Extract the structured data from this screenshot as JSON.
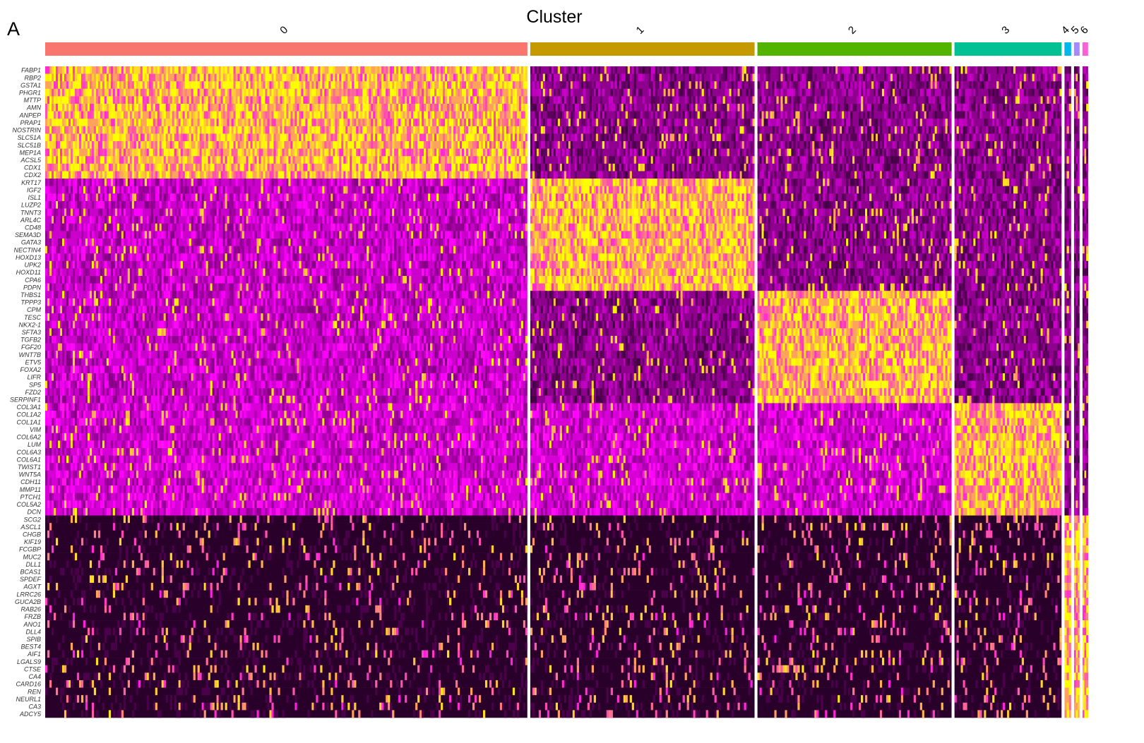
{
  "panel_label": "A",
  "chart_data": {
    "type": "heatmap",
    "title": "Cluster",
    "clusters": [
      {
        "name": "0",
        "color": "#F8766D",
        "cells": 720,
        "marker_block": 0
      },
      {
        "name": "1",
        "color": "#C49A00",
        "cells": 335,
        "marker_block": 1
      },
      {
        "name": "2",
        "color": "#53B400",
        "cells": 290,
        "marker_block": 2
      },
      {
        "name": "3",
        "color": "#00C094",
        "cells": 160,
        "marker_block": 3
      },
      {
        "name": "4",
        "color": "#00B6EB",
        "cells": 10,
        "marker_block": 4
      },
      {
        "name": "5",
        "color": "#A58AFF",
        "cells": 8,
        "marker_block": 4
      },
      {
        "name": "6",
        "color": "#FB61D7",
        "cells": 8,
        "marker_block": 4
      }
    ],
    "genes": [
      "FABP1",
      "RBP2",
      "GSTA1",
      "PHGR1",
      "MTTP",
      "AMN",
      "ANPEP",
      "PRAP1",
      "NOSTRIN",
      "SLC51A",
      "SLC51B",
      "MEP1A",
      "ACSL5",
      "CDX1",
      "CDX2",
      "KRT17",
      "IGF2",
      "ISL1",
      "LUZP2",
      "TNNT3",
      "ARL4C",
      "CD48",
      "SEMA3D",
      "GATA3",
      "NECTIN4",
      "HOXD13",
      "UPK2",
      "HOXD11",
      "CPA6",
      "PDPN",
      "THBS1",
      "TPPP3",
      "CPM",
      "TESC",
      "NKX2-1",
      "SFTA3",
      "TGFB2",
      "FGF20",
      "WNT7B",
      "ETV5",
      "FOXA2",
      "LIFR",
      "SP5",
      "FZD2",
      "SERPINF1",
      "COL3A1",
      "COL1A2",
      "COL1A1",
      "VIM",
      "COL6A2",
      "LUM",
      "COL6A3",
      "COL6A1",
      "TWIST1",
      "WNT5A",
      "CDH11",
      "MMP11",
      "PTCH1",
      "COL5A2",
      "DCN",
      "SCG2",
      "ASCL1",
      "CHGB",
      "KIF19",
      "FCGBP",
      "MUC2",
      "DLL1",
      "BCAS1",
      "SPDEF",
      "AGXT",
      "LRRC26",
      "GUCA2B",
      "RAB26",
      "FRZB",
      "ANO1",
      "DLL4",
      "SPIB",
      "BEST4",
      "AIF1",
      "LGALS9",
      "CTSE",
      "CA4",
      "CARD16",
      "REN",
      "NEURL1",
      "CA3",
      "ADCY5"
    ],
    "gene_blocks": [
      15,
      15,
      15,
      15,
      27
    ],
    "colorscale": {
      "low": "#000000",
      "mid": "#FF00FF",
      "high": "#FFFF00"
    },
    "legend": "none"
  }
}
